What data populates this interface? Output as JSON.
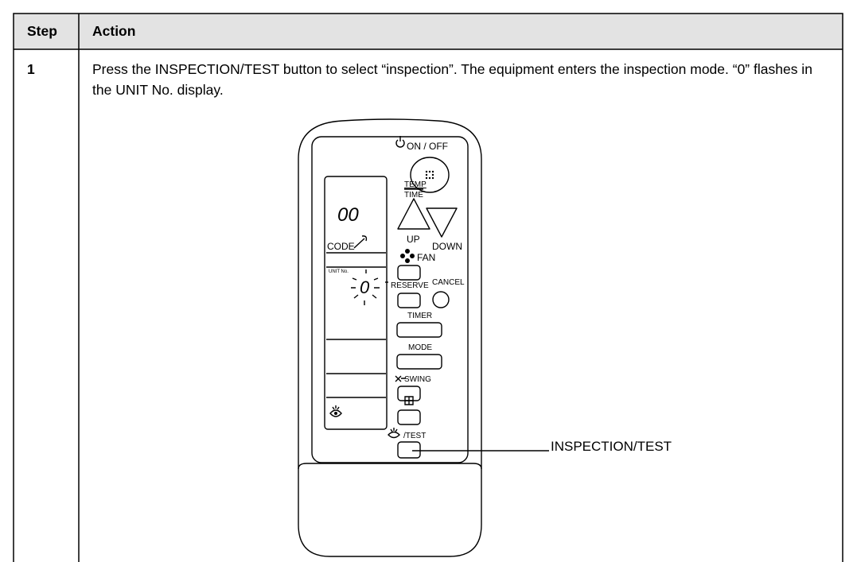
{
  "table": {
    "header": [
      "Step",
      "Action"
    ],
    "rows": [
      [
        "1",
        "Press the INSPECTION/TEST button to select “inspection”. The equipment enters the inspection mode. “0” flashes in the UNIT No. display."
      ]
    ]
  },
  "figure": {
    "labels": {
      "on_off": "ON / OFF",
      "temp": "TEMP",
      "time": "TIME",
      "display": "00",
      "up": "UP",
      "down": "DOWN",
      "code": "CODE",
      "fan": "FAN",
      "unit_no": "UNIT No.",
      "unit_value": "0",
      "reserve": "RESERVE",
      "cancel": "CANCEL",
      "timer": "TIMER",
      "mode": "MODE",
      "swing": "SWING",
      "test": "/TEST"
    },
    "callout": "INSPECTION/TEST"
  }
}
